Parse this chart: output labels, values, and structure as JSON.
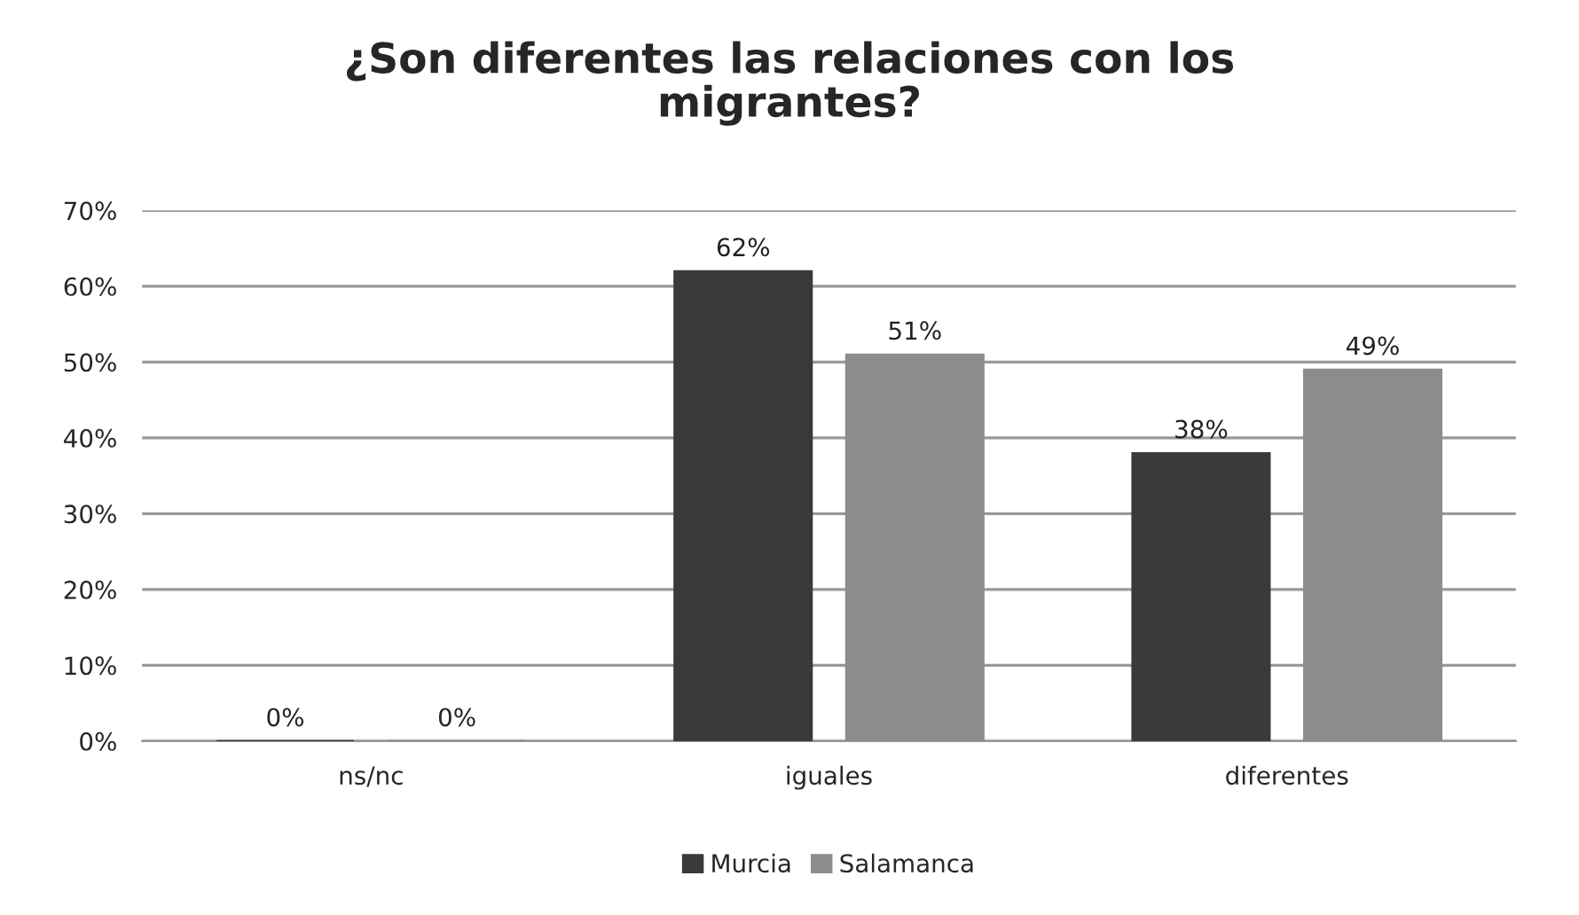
{
  "chart_data": {
    "type": "bar",
    "title": "¿Son diferentes las relaciones con los\nmigrantes?",
    "categories": [
      "ns/nc",
      "iguales",
      "diferentes"
    ],
    "series": [
      {
        "name": "Murcia",
        "color": "#3a3a3a",
        "values": [
          0,
          62,
          38
        ],
        "value_labels": [
          "0%",
          "62%",
          "38%"
        ]
      },
      {
        "name": "Salamanca",
        "color": "#8c8c8c",
        "values": [
          0,
          51,
          49
        ],
        "value_labels": [
          "0%",
          "51%",
          "49%"
        ]
      }
    ],
    "ylim": [
      0,
      70
    ],
    "yticks": [
      {
        "value": 0,
        "label": "0%"
      },
      {
        "value": 10,
        "label": "10%"
      },
      {
        "value": 20,
        "label": "20%"
      },
      {
        "value": 30,
        "label": "30%"
      },
      {
        "value": 40,
        "label": "40%"
      },
      {
        "value": 50,
        "label": "50%"
      },
      {
        "value": 60,
        "label": "60%"
      },
      {
        "value": 70,
        "label": "70%"
      }
    ],
    "grid": "y",
    "legend": "bottom"
  }
}
